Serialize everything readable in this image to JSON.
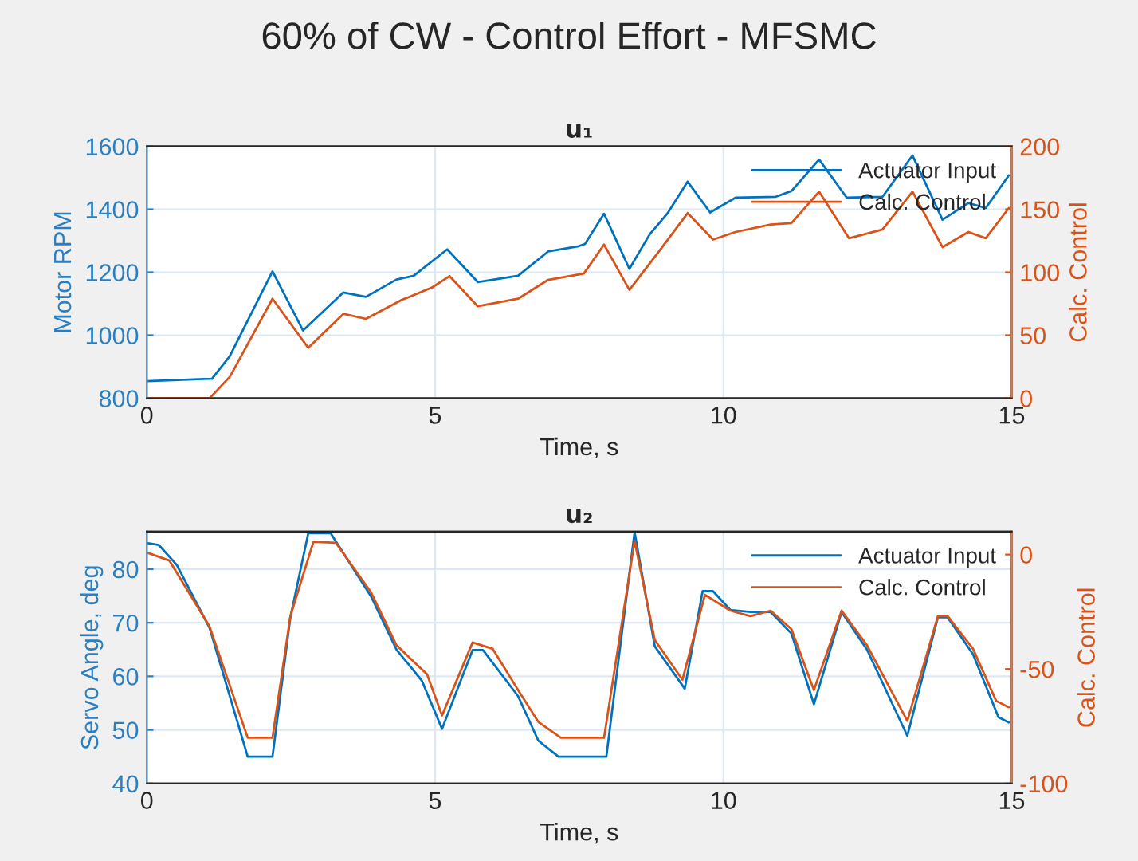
{
  "chart_data": [
    {
      "type": "line",
      "title": "60% of CW - Control Effort - MFSMC",
      "subtitle": "u₁",
      "xlabel": "Time, s",
      "ylabel": "Motor RPM",
      "y2label": "Calc. Control",
      "xlim": [
        0,
        15
      ],
      "xticks": [
        0,
        5,
        10,
        15
      ],
      "ylim": [
        800,
        1600
      ],
      "yticks": [
        800,
        1000,
        1200,
        1400,
        1600
      ],
      "y2lim": [
        0,
        200
      ],
      "y2ticks": [
        0,
        50,
        100,
        150,
        200
      ],
      "grid": true,
      "legend": "top right",
      "series": [
        {
          "name": "Actuator Input",
          "color": "#0072bd",
          "x": [
            0,
            1.13,
            1.44,
            2.18,
            2.71,
            3.41,
            3.8,
            4.33,
            4.63,
            5.21,
            5.74,
            6.44,
            6.96,
            7.49,
            7.6,
            7.93,
            8.37,
            8.72,
            9.03,
            9.38,
            9.77,
            10.21,
            10.91,
            11.18,
            11.66,
            12.14,
            12.76,
            13.28,
            13.8,
            14.25,
            14.55,
            14.95
          ],
          "values": [
            854,
            862,
            934,
            1203,
            1015,
            1136,
            1122,
            1177,
            1189,
            1273,
            1169,
            1189,
            1266,
            1283,
            1290,
            1386,
            1211,
            1320,
            1387,
            1488,
            1390,
            1437,
            1440,
            1458,
            1558,
            1437,
            1440,
            1571,
            1367,
            1420,
            1404,
            1508
          ]
        },
        {
          "name": "Calc. Control",
          "color": "#d95319",
          "axis": "y2",
          "x": [
            0,
            1.09,
            1.44,
            2.18,
            2.8,
            3.41,
            3.8,
            4.42,
            4.95,
            5.25,
            5.74,
            6.44,
            6.96,
            7.58,
            7.93,
            8.37,
            8.89,
            9.38,
            9.82,
            10.21,
            10.82,
            11.18,
            11.66,
            12.18,
            12.76,
            13.28,
            13.8,
            14.25,
            14.55,
            14.95
          ],
          "values": [
            0,
            0,
            17,
            79,
            40,
            67,
            63,
            78,
            88,
            97,
            73,
            79,
            94,
            99,
            122,
            86,
            117,
            147,
            126,
            132,
            138,
            139,
            164,
            127,
            134,
            164,
            120,
            132,
            127,
            151
          ]
        }
      ]
    },
    {
      "type": "line",
      "subtitle": "u₂",
      "xlabel": "Time, s",
      "ylabel": "Servo Angle, deg",
      "y2label": "Calc. Control",
      "xlim": [
        0,
        15
      ],
      "xticks": [
        0,
        5,
        10,
        15
      ],
      "ylim": [
        40,
        87
      ],
      "yticks": [
        40,
        50,
        60,
        70,
        80
      ],
      "y2lim": [
        -100,
        10
      ],
      "y2ticks": [
        -100,
        -50,
        0
      ],
      "grid": true,
      "legend": "top right",
      "series": [
        {
          "name": "Actuator Input",
          "color": "#0072bd",
          "x": [
            0,
            0.21,
            0.52,
            1.09,
            1.75,
            2.18,
            2.49,
            2.8,
            3.19,
            3.89,
            4.33,
            4.77,
            5.12,
            5.65,
            5.83,
            6.44,
            6.79,
            7.14,
            7.97,
            8.46,
            8.81,
            9.33,
            9.64,
            9.82,
            10.12,
            10.47,
            10.82,
            11.18,
            11.57,
            12.05,
            12.49,
            13.19,
            13.72,
            13.89,
            14.33,
            14.77,
            14.95
          ],
          "values": [
            84.9,
            84.5,
            80.8,
            69,
            45,
            45,
            71,
            86.7,
            86.7,
            74.9,
            65,
            59.2,
            50.2,
            64.9,
            64.9,
            56.3,
            48,
            45,
            45,
            86.9,
            65.6,
            57.7,
            75.9,
            75.9,
            72.4,
            72,
            72,
            68,
            54.8,
            72,
            65,
            48.9,
            71,
            71,
            64.1,
            52.4,
            51.4
          ]
        },
        {
          "name": "Calc. Control",
          "color": "#d95319",
          "axis": "y2",
          "x": [
            0,
            0.39,
            1.09,
            1.75,
            2.18,
            2.49,
            2.89,
            3.28,
            3.89,
            4.33,
            4.86,
            5.12,
            5.65,
            6.0,
            6.44,
            6.79,
            7.18,
            7.93,
            8.46,
            8.81,
            9.29,
            9.68,
            10.12,
            10.47,
            10.82,
            11.18,
            11.57,
            12.05,
            12.49,
            13.19,
            13.72,
            13.89,
            14.33,
            14.73,
            14.95
          ],
          "values": [
            0.9,
            -2.6,
            -31.5,
            -80,
            -80,
            -26.9,
            5.6,
            5.1,
            -16.5,
            -39.6,
            -52.3,
            -70.3,
            -38.4,
            -41.2,
            -59.2,
            -73.1,
            -80,
            -80,
            6,
            -37.3,
            -54.7,
            -17.6,
            -24.5,
            -26.9,
            -24.5,
            -32.6,
            -59.2,
            -24.5,
            -39.6,
            -72.7,
            -26.9,
            -26.9,
            -41.2,
            -63.9,
            -66.7
          ]
        }
      ]
    }
  ]
}
